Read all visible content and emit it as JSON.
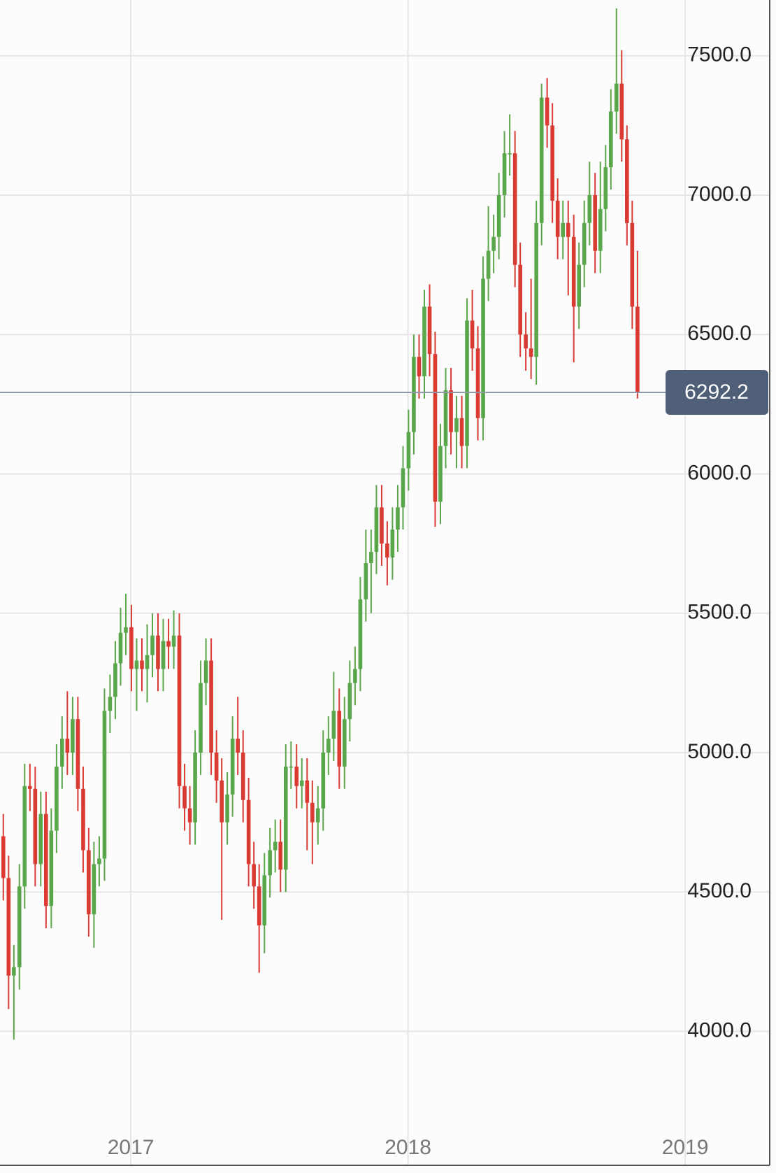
{
  "chart_data": {
    "type": "candlestick",
    "up_color": "#5aa64b",
    "down_color": "#d93a32",
    "grid": true,
    "xlim": [
      2016.528,
      2019.305
    ],
    "xticks": [
      2017,
      2018,
      2019
    ],
    "ylim": [
      3670,
      7700
    ],
    "yticks": [
      {
        "value": 4000,
        "label": "4000.0"
      },
      {
        "value": 4500,
        "label": "4500.0"
      },
      {
        "value": 5000,
        "label": "5000.0"
      },
      {
        "value": 5500,
        "label": "5500.0"
      },
      {
        "value": 6000,
        "label": "6000.0"
      },
      {
        "value": 6500,
        "label": "6500.0"
      },
      {
        "value": 7000,
        "label": "7000.0"
      },
      {
        "value": 7500,
        "label": "7500.0"
      }
    ],
    "last_value": 6292.2,
    "x": [
      2016.54,
      2016.559,
      2016.578,
      2016.598,
      2016.617,
      2016.636,
      2016.655,
      2016.675,
      2016.694,
      2016.713,
      2016.732,
      2016.752,
      2016.771,
      2016.79,
      2016.809,
      2016.828,
      2016.848,
      2016.867,
      2016.886,
      2016.905,
      2016.925,
      2016.944,
      2016.963,
      2016.982,
      2017.002,
      2017.021,
      2017.04,
      2017.059,
      2017.078,
      2017.098,
      2017.117,
      2017.136,
      2017.155,
      2017.175,
      2017.194,
      2017.213,
      2017.232,
      2017.252,
      2017.271,
      2017.29,
      2017.309,
      2017.328,
      2017.348,
      2017.367,
      2017.386,
      2017.405,
      2017.425,
      2017.444,
      2017.463,
      2017.482,
      2017.502,
      2017.521,
      2017.54,
      2017.559,
      2017.578,
      2017.598,
      2017.617,
      2017.636,
      2017.655,
      2017.675,
      2017.694,
      2017.713,
      2017.732,
      2017.752,
      2017.771,
      2017.79,
      2017.809,
      2017.828,
      2017.848,
      2017.867,
      2017.886,
      2017.905,
      2017.925,
      2017.944,
      2017.963,
      2017.982,
      2018.002,
      2018.021,
      2018.04,
      2018.059,
      2018.078,
      2018.098,
      2018.117,
      2018.136,
      2018.155,
      2018.175,
      2018.194,
      2018.213,
      2018.232,
      2018.252,
      2018.271,
      2018.29,
      2018.309,
      2018.328,
      2018.348,
      2018.367,
      2018.386,
      2018.405,
      2018.425,
      2018.444,
      2018.463,
      2018.482,
      2018.502,
      2018.521,
      2018.54,
      2018.559,
      2018.578,
      2018.598,
      2018.617,
      2018.636,
      2018.655,
      2018.675,
      2018.694,
      2018.713,
      2018.732,
      2018.752,
      2018.771,
      2018.79,
      2018.809,
      2018.828
    ],
    "open": [
      4700,
      4550,
      4200,
      4230,
      4520,
      4880,
      4870,
      4600,
      4780,
      4450,
      4720,
      4950,
      5050,
      5000,
      5120,
      4870,
      4650,
      4420,
      4600,
      4620,
      5150,
      5200,
      5320,
      5430,
      5450,
      5300,
      5330,
      5300,
      5350,
      5420,
      5300,
      5400,
      5380,
      5420,
      4880,
      4800,
      4750,
      5000,
      5250,
      5330,
      5000,
      4900,
      4750,
      4850,
      5050,
      5000,
      4830,
      4600,
      4520,
      4380,
      4560,
      4650,
      4680,
      4580,
      4950,
      4950,
      4880,
      4900,
      4820,
      4750,
      4800,
      5000,
      5050,
      5150,
      4950,
      5120,
      5250,
      5300,
      5550,
      5680,
      5720,
      5880,
      5750,
      5700,
      5800,
      5880,
      6020,
      6150,
      6420,
      6350,
      6600,
      6430,
      5900,
      6100,
      6300,
      6150,
      6200,
      6100,
      6550,
      6450,
      6200,
      6700,
      6800,
      6850,
      7000,
      7150,
      7150,
      6750,
      6500,
      6450,
      6420,
      6900,
      7350,
      7250,
      6980,
      6850,
      6900,
      6850,
      6600,
      6750,
      6900,
      7000,
      6800,
      6950,
      7100,
      7300,
      7400,
      7200,
      6900,
      6600
    ],
    "high": [
      4780,
      4630,
      4310,
      4600,
      4960,
      4960,
      4950,
      4860,
      4860,
      4800,
      5030,
      5130,
      5220,
      5200,
      5200,
      4950,
      4730,
      4680,
      4700,
      5230,
      5280,
      5400,
      5520,
      5570,
      5530,
      5410,
      5410,
      5460,
      5500,
      5500,
      5480,
      5480,
      5510,
      5500,
      4960,
      4880,
      5080,
      5330,
      5410,
      5410,
      5080,
      4980,
      4930,
      5130,
      5200,
      5080,
      4910,
      4680,
      4600,
      4640,
      4730,
      4760,
      4760,
      5030,
      5040,
      5030,
      4980,
      4980,
      4900,
      4880,
      5080,
      5130,
      5290,
      5230,
      5200,
      5330,
      5380,
      5630,
      5800,
      5800,
      5960,
      5960,
      5830,
      5880,
      5960,
      6100,
      6230,
      6500,
      6500,
      6660,
      6680,
      6510,
      6180,
      6380,
      6380,
      6280,
      6280,
      6630,
      6660,
      6530,
      6780,
      6960,
      6930,
      7080,
      7230,
      7290,
      7230,
      6830,
      6580,
      6700,
      6980,
      7400,
      7420,
      7330,
      7060,
      6980,
      6980,
      6930,
      6830,
      6980,
      7120,
      7080,
      7120,
      7180,
      7380,
      7670,
      7520,
      7250,
      6980,
      6800
    ],
    "low": [
      4470,
      4080,
      3970,
      4150,
      4440,
      4790,
      4520,
      4520,
      4370,
      4370,
      4640,
      4870,
      4920,
      4920,
      4790,
      4570,
      4340,
      4300,
      4520,
      4540,
      5070,
      5120,
      5240,
      5350,
      5220,
      5150,
      5220,
      5180,
      5270,
      5220,
      5220,
      5300,
      5300,
      4800,
      4720,
      4670,
      4670,
      4920,
      5170,
      4920,
      4820,
      4400,
      4670,
      4770,
      4920,
      4750,
      4520,
      4440,
      4210,
      4280,
      4480,
      4570,
      4500,
      4500,
      4870,
      4800,
      4800,
      4650,
      4600,
      4670,
      4720,
      4920,
      4970,
      4870,
      4870,
      5040,
      5170,
      5220,
      5470,
      5500,
      5640,
      5670,
      5600,
      5620,
      5720,
      5800,
      5940,
      6070,
      6270,
      6270,
      6350,
      5810,
      5820,
      6020,
      6070,
      6020,
      6020,
      6020,
      6370,
      6120,
      6120,
      6620,
      6720,
      6770,
      6920,
      7070,
      6670,
      6420,
      6370,
      6340,
      6320,
      6820,
      7170,
      6900,
      6770,
      6770,
      6640,
      6400,
      6520,
      6670,
      6820,
      6720,
      6720,
      6870,
      7020,
      7220,
      7120,
      6820,
      6520,
      6270
    ],
    "close": [
      4550,
      4200,
      4230,
      4520,
      4880,
      4870,
      4600,
      4780,
      4450,
      4720,
      4950,
      5050,
      5000,
      5120,
      4870,
      4650,
      4420,
      4600,
      4620,
      5150,
      5200,
      5320,
      5430,
      5450,
      5300,
      5330,
      5300,
      5350,
      5420,
      5300,
      5400,
      5380,
      5420,
      4880,
      4800,
      4750,
      5000,
      5250,
      5330,
      5000,
      4900,
      4750,
      4850,
      5050,
      5000,
      4830,
      4600,
      4520,
      4380,
      4560,
      4650,
      4680,
      4580,
      4950,
      4950,
      4880,
      4900,
      4820,
      4750,
      4800,
      5000,
      5050,
      5150,
      4950,
      5120,
      5250,
      5300,
      5550,
      5680,
      5720,
      5880,
      5750,
      5700,
      5800,
      5880,
      6020,
      6150,
      6420,
      6350,
      6600,
      6430,
      5900,
      6100,
      6300,
      6150,
      6200,
      6100,
      6550,
      6450,
      6200,
      6700,
      6800,
      6850,
      7000,
      7150,
      7150,
      6750,
      6500,
      6450,
      6420,
      6900,
      7350,
      7250,
      6980,
      6850,
      6900,
      6850,
      6600,
      6750,
      6900,
      7000,
      6800,
      6950,
      7100,
      7300,
      7400,
      7200,
      6900,
      6600,
      6292.2
    ]
  }
}
